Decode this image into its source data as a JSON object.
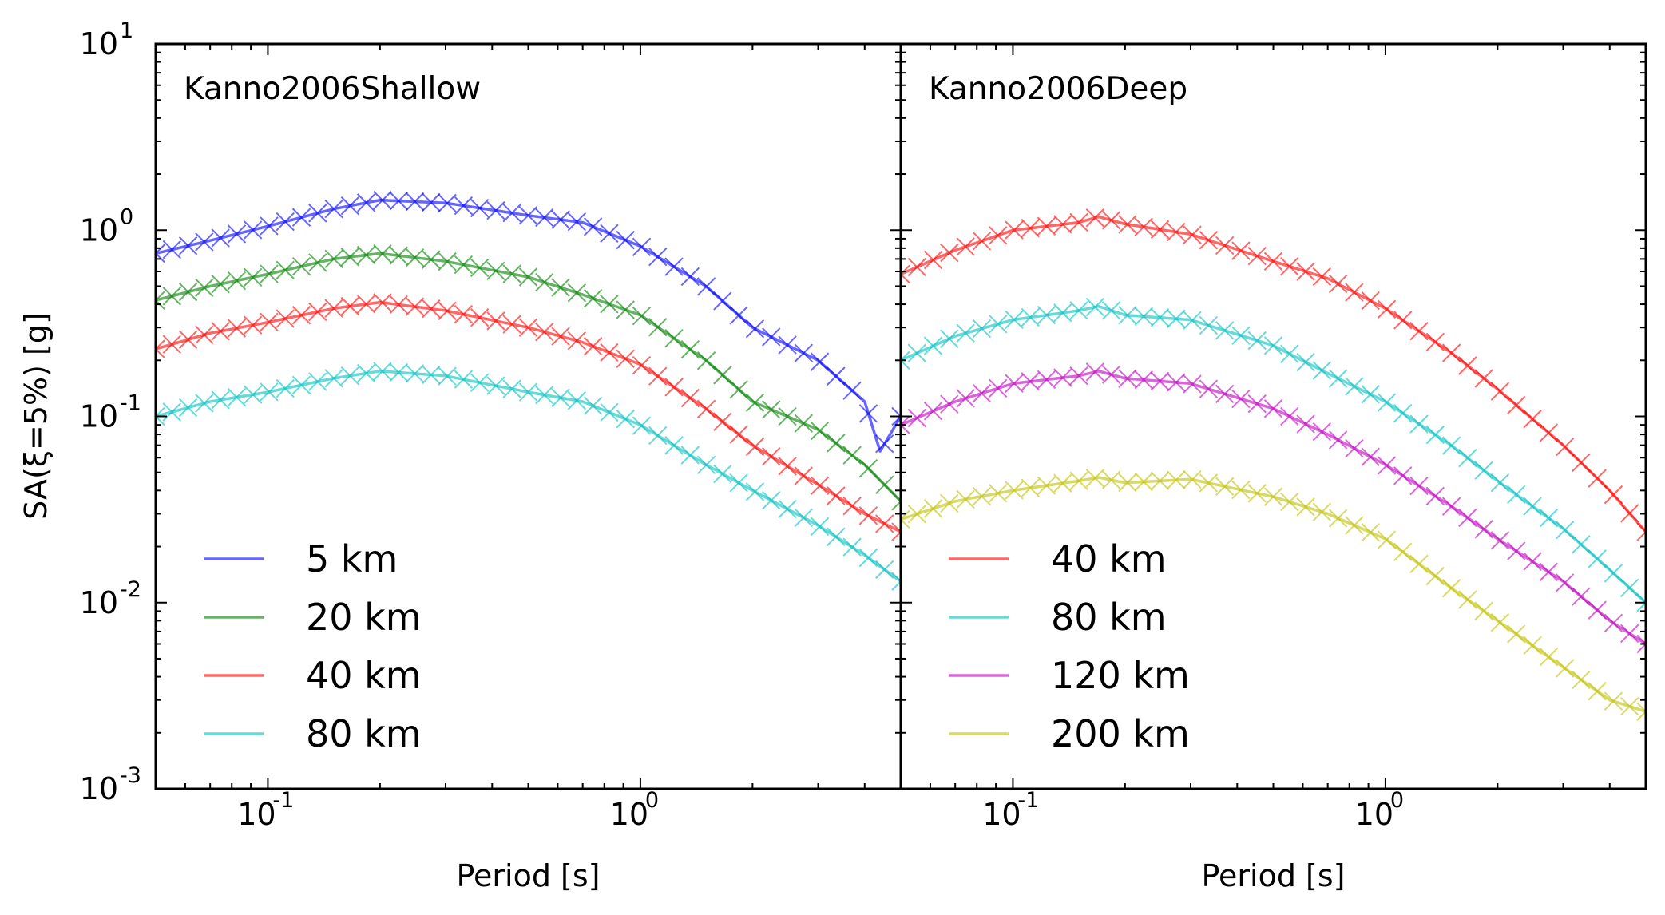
{
  "chart_data": {
    "type": "line",
    "y_axis_label": "SA(ξ=5%) [g]",
    "x_scale": "log",
    "y_scale": "log",
    "xlim": [
      0.05,
      5.0
    ],
    "ylim": [
      0.001,
      10
    ],
    "x_tick_labels": [
      {
        "value": 0.1,
        "base": "10",
        "exp": "-1"
      },
      {
        "value": 1,
        "base": "10",
        "exp": "0"
      }
    ],
    "y_tick_labels": [
      {
        "value": 10,
        "base": "10",
        "exp": "1"
      },
      {
        "value": 1,
        "base": "10",
        "exp": "0"
      },
      {
        "value": 0.1,
        "base": "10",
        "exp": "-1"
      },
      {
        "value": 0.01,
        "base": "10",
        "exp": "-2"
      },
      {
        "value": 0.001,
        "base": "10",
        "exp": "-3"
      }
    ],
    "panels": [
      {
        "title": "Kanno2006Shallow",
        "xlabel": "Period [s]",
        "legend_position": "lower-left",
        "series": [
          {
            "name": "5 km",
            "color": "#0000ff",
            "x": [
              0.05,
              0.07,
              0.1,
              0.15,
              0.2,
              0.3,
              0.5,
              0.7,
              1.0,
              1.5,
              2.0,
              3.0,
              4.0,
              4.4,
              5.0
            ],
            "y": [
              0.75,
              0.88,
              1.05,
              1.3,
              1.45,
              1.4,
              1.2,
              1.1,
              0.82,
              0.5,
              0.3,
              0.2,
              0.12,
              0.065,
              0.1
            ]
          },
          {
            "name": "20 km",
            "color": "#008000",
            "x": [
              0.05,
              0.07,
              0.1,
              0.15,
              0.2,
              0.3,
              0.5,
              0.7,
              1.0,
              1.5,
              2.0,
              3.0,
              4.0,
              5.0
            ],
            "y": [
              0.42,
              0.5,
              0.58,
              0.7,
              0.75,
              0.68,
              0.56,
              0.45,
              0.35,
              0.2,
              0.12,
              0.085,
              0.055,
              0.035
            ]
          },
          {
            "name": "40 km",
            "color": "#ff0000",
            "x": [
              0.05,
              0.07,
              0.1,
              0.15,
              0.2,
              0.3,
              0.5,
              0.7,
              1.0,
              1.5,
              2.0,
              3.0,
              4.0,
              5.0
            ],
            "y": [
              0.23,
              0.28,
              0.32,
              0.38,
              0.41,
              0.37,
              0.3,
              0.25,
              0.19,
              0.11,
              0.07,
              0.043,
              0.03,
              0.024
            ]
          },
          {
            "name": "80 km",
            "color": "#00bfbf",
            "x": [
              0.05,
              0.07,
              0.1,
              0.15,
              0.2,
              0.3,
              0.5,
              0.7,
              1.0,
              1.5,
              2.0,
              3.0,
              4.0,
              5.0
            ],
            "y": [
              0.1,
              0.12,
              0.135,
              0.16,
              0.175,
              0.165,
              0.135,
              0.12,
              0.09,
              0.055,
              0.04,
              0.026,
              0.018,
              0.013
            ]
          }
        ]
      },
      {
        "title": "Kanno2006Deep",
        "xlabel": "Period [s]",
        "legend_position": "lower-left",
        "series": [
          {
            "name": "40 km",
            "color": "#ff0000",
            "x": [
              0.05,
              0.07,
              0.1,
              0.15,
              0.17,
              0.2,
              0.3,
              0.5,
              0.7,
              1.0,
              1.5,
              2.0,
              3.0,
              4.0,
              5.0
            ],
            "y": [
              0.58,
              0.78,
              1.0,
              1.1,
              1.18,
              1.08,
              0.95,
              0.68,
              0.55,
              0.38,
              0.22,
              0.14,
              0.07,
              0.04,
              0.024
            ]
          },
          {
            "name": "80 km",
            "color": "#00bfbf",
            "x": [
              0.05,
              0.07,
              0.1,
              0.15,
              0.17,
              0.2,
              0.3,
              0.5,
              0.7,
              1.0,
              1.5,
              2.0,
              3.0,
              4.0,
              5.0
            ],
            "y": [
              0.2,
              0.27,
              0.33,
              0.37,
              0.39,
              0.35,
              0.33,
              0.24,
              0.17,
              0.12,
              0.07,
              0.045,
              0.025,
              0.015,
              0.01
            ]
          },
          {
            "name": "120 km",
            "color": "#bf00bf",
            "x": [
              0.05,
              0.07,
              0.1,
              0.15,
              0.17,
              0.2,
              0.3,
              0.5,
              0.7,
              1.0,
              1.5,
              2.0,
              3.0,
              4.0,
              5.0
            ],
            "y": [
              0.09,
              0.12,
              0.15,
              0.165,
              0.175,
              0.16,
              0.15,
              0.11,
              0.08,
              0.055,
              0.033,
              0.022,
              0.013,
              0.008,
              0.006
            ]
          },
          {
            "name": "200 km",
            "color": "#bfbf00",
            "x": [
              0.05,
              0.07,
              0.1,
              0.15,
              0.17,
              0.2,
              0.3,
              0.5,
              0.7,
              1.0,
              1.5,
              2.0,
              3.0,
              4.0,
              5.0
            ],
            "y": [
              0.028,
              0.035,
              0.04,
              0.045,
              0.047,
              0.044,
              0.046,
              0.037,
              0.03,
              0.022,
              0.012,
              0.008,
              0.0045,
              0.003,
              0.0026
            ]
          }
        ]
      }
    ]
  }
}
